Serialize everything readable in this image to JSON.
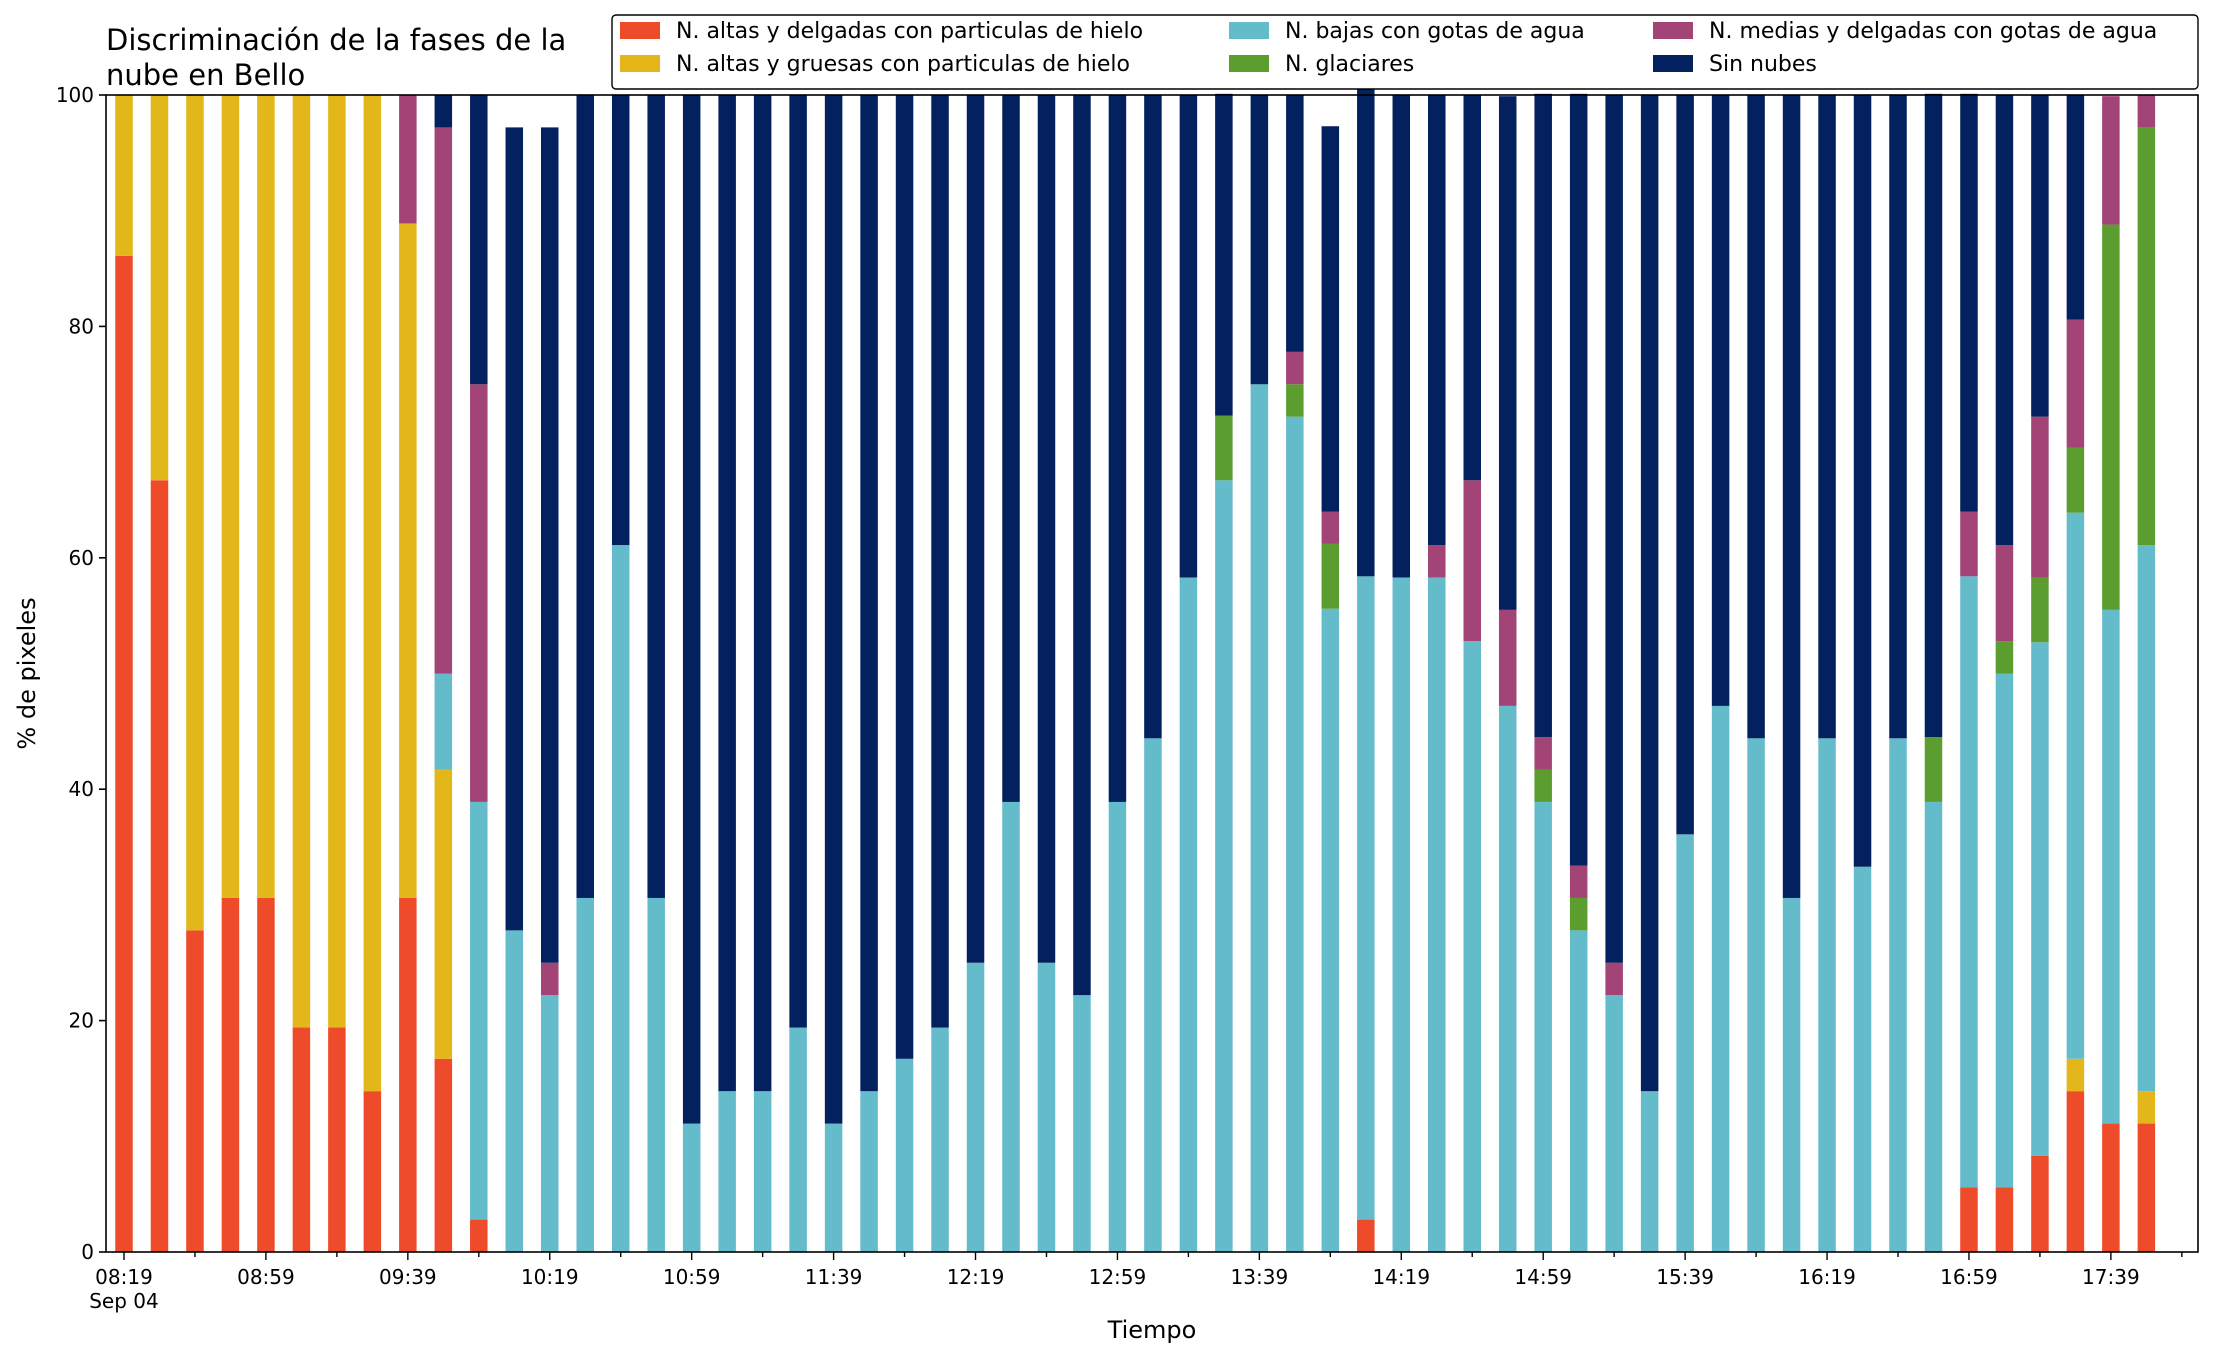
{
  "chart_data": {
    "type": "bar",
    "stacked": true,
    "title_lines": [
      "Discriminación de la fases de la",
      "nube en Bello"
    ],
    "xlabel": "Tiempo",
    "ylabel": "% de pixeles",
    "ylim": [
      0,
      100
    ],
    "yticks": [
      0,
      20,
      40,
      60,
      80,
      100
    ],
    "grid": false,
    "legend_position": "top-right",
    "xtick_labels": [
      {
        "index": 0,
        "label": "08:19",
        "sublabel": "Sep 04"
      },
      {
        "index": 4,
        "label": "08:59"
      },
      {
        "index": 8,
        "label": "09:39"
      },
      {
        "index": 12,
        "label": "10:19"
      },
      {
        "index": 16,
        "label": "10:59"
      },
      {
        "index": 20,
        "label": "11:39"
      },
      {
        "index": 24,
        "label": "12:19"
      },
      {
        "index": 28,
        "label": "12:59"
      },
      {
        "index": 32,
        "label": "13:39"
      },
      {
        "index": 36,
        "label": "14:19"
      },
      {
        "index": 40,
        "label": "14:59"
      },
      {
        "index": 44,
        "label": "15:39"
      },
      {
        "index": 48,
        "label": "16:19"
      },
      {
        "index": 52,
        "label": "16:59"
      },
      {
        "index": 56,
        "label": "17:39"
      }
    ],
    "series": [
      {
        "name": "N. altas y delgadas con particulas de hielo",
        "color": "#ee4b2b",
        "values": [
          86.1,
          66.7,
          27.8,
          30.6,
          30.6,
          19.4,
          19.4,
          13.9,
          30.6,
          16.7,
          2.8,
          0,
          0,
          0,
          0,
          0,
          0,
          0,
          0,
          0,
          0,
          0,
          0,
          0,
          0,
          0,
          0,
          0,
          0,
          0,
          0,
          0,
          0,
          0,
          0,
          2.8,
          0,
          0,
          0,
          0,
          0,
          0,
          0,
          0,
          0,
          0,
          0,
          0,
          0,
          0,
          0,
          0,
          5.6,
          5.6,
          8.3,
          13.9,
          11.1,
          11.1
        ]
      },
      {
        "name": "N. altas y gruesas con particulas de hielo",
        "color": "#e3b619",
        "values": [
          13.9,
          33.3,
          72.2,
          69.4,
          69.4,
          80.6,
          80.6,
          86.1,
          58.3,
          25.0,
          0,
          0,
          0,
          0,
          0,
          0,
          0,
          0,
          0,
          0,
          0,
          0,
          0,
          0,
          0,
          0,
          0,
          0,
          0,
          0,
          0,
          0,
          0,
          0,
          0,
          0,
          0,
          0,
          0,
          0,
          0,
          0,
          0,
          0,
          0,
          0,
          0,
          0,
          0,
          0,
          0,
          0,
          0,
          0,
          0,
          2.8,
          0,
          2.8
        ]
      },
      {
        "name": "N. bajas con gotas de agua",
        "color": "#64bccb",
        "values": [
          0,
          0,
          0,
          0,
          0,
          0,
          0,
          0,
          0,
          8.3,
          36.1,
          27.8,
          22.2,
          30.6,
          61.1,
          30.6,
          11.1,
          13.9,
          13.9,
          19.4,
          11.1,
          13.9,
          16.7,
          19.4,
          25.0,
          38.9,
          25.0,
          22.2,
          38.9,
          44.4,
          58.3,
          66.7,
          75.0,
          72.2,
          55.6,
          55.6,
          58.3,
          58.3,
          52.8,
          47.2,
          38.9,
          27.8,
          22.2,
          13.9,
          36.1,
          47.2,
          44.4,
          30.6,
          44.4,
          33.3,
          44.4,
          38.9,
          52.8,
          44.4,
          44.4,
          47.2,
          44.4,
          47.2
        ]
      },
      {
        "name": "N. glaciares",
        "color": "#5b9e2f",
        "values": [
          0,
          0,
          0,
          0,
          0,
          0,
          0,
          0,
          0,
          0,
          0,
          0,
          0,
          0,
          0,
          0,
          0,
          0,
          0,
          0,
          0,
          0,
          0,
          0,
          0,
          0,
          0,
          0,
          0,
          0,
          0,
          5.6,
          0,
          2.8,
          5.6,
          0,
          0,
          0,
          0,
          0,
          2.8,
          2.8,
          0,
          0,
          0,
          0,
          0,
          0,
          0,
          0,
          0,
          5.6,
          0,
          2.8,
          5.6,
          5.6,
          33.3,
          36.1
        ]
      },
      {
        "name": "N. medias y delgadas con gotas de agua",
        "color": "#a34477",
        "values": [
          0,
          0,
          0,
          0,
          0,
          0,
          0,
          0,
          11.1,
          47.2,
          36.1,
          0,
          2.8,
          0,
          0,
          0,
          0,
          0,
          0,
          0,
          0,
          0,
          0,
          0,
          0,
          0,
          0,
          0,
          0,
          0,
          0,
          0,
          0,
          2.8,
          2.8,
          0,
          0,
          2.8,
          13.9,
          8.3,
          2.8,
          2.8,
          2.8,
          0,
          0,
          0,
          0,
          0,
          0,
          0,
          0,
          0,
          5.6,
          8.3,
          13.9,
          11.1,
          11.1,
          2.8
        ]
      },
      {
        "name": "Sin nubes",
        "color": "#03205f",
        "values": [
          0,
          0,
          0,
          0,
          0,
          0,
          0,
          0,
          0,
          2.8,
          25.0,
          69.4,
          72.2,
          69.4,
          38.9,
          69.4,
          88.9,
          86.1,
          86.1,
          80.6,
          88.9,
          86.1,
          83.3,
          80.6,
          75.0,
          61.1,
          75.0,
          77.8,
          61.1,
          55.6,
          41.7,
          27.8,
          25.0,
          22.2,
          33.3,
          44.4,
          41.7,
          38.9,
          33.3,
          44.4,
          55.6,
          66.7,
          75.0,
          86.1,
          63.9,
          52.8,
          55.6,
          69.4,
          55.6,
          66.7,
          55.6,
          55.6,
          36.1,
          38.9,
          27.8,
          19.4,
          0,
          0
        ]
      }
    ],
    "legend_layout": [
      [
        "N. altas y delgadas con particulas de hielo",
        "N. bajas con gotas de agua",
        "N. medias y delgadas con gotas de agua"
      ],
      [
        "N. altas y gruesas con particulas de hielo",
        "N. glaciares",
        "Sin nubes"
      ]
    ]
  }
}
